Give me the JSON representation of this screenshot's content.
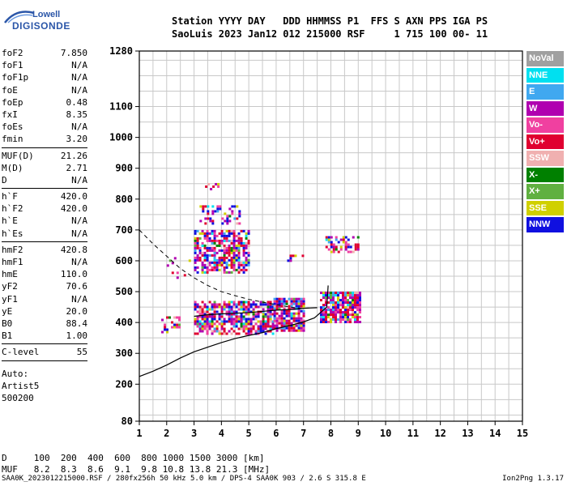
{
  "logo": {
    "line1": "Lowell",
    "line2": "DIGISONDE"
  },
  "header": {
    "row1": "Station YYYY DAY   DDD HHMMSS P1  FFS S AXN PPS IGA PS",
    "row2": "SaoLuis 2023 Jan12 012 215000 RSF     1 715 100 00- 11"
  },
  "params": [
    [
      {
        "name": "foF2",
        "value": "7.850"
      },
      {
        "name": "foF1",
        "value": "N/A"
      },
      {
        "name": "foF1p",
        "value": "N/A"
      },
      {
        "name": "foE",
        "value": "N/A"
      },
      {
        "name": "foEp",
        "value": "0.48"
      },
      {
        "name": "fxI",
        "value": "8.35"
      },
      {
        "name": "foEs",
        "value": "N/A"
      },
      {
        "name": "fmin",
        "value": "3.20"
      }
    ],
    [
      {
        "name": "MUF(D)",
        "value": "21.26"
      },
      {
        "name": "M(D)",
        "value": "2.71"
      },
      {
        "name": "D",
        "value": "N/A"
      }
    ],
    [
      {
        "name": "h`F",
        "value": "420.0"
      },
      {
        "name": "h`F2",
        "value": "420.0"
      },
      {
        "name": "h`E",
        "value": "N/A"
      },
      {
        "name": "h`Es",
        "value": "N/A"
      }
    ],
    [
      {
        "name": "hmF2",
        "value": "420.8"
      },
      {
        "name": "hmF1",
        "value": "N/A"
      },
      {
        "name": "hmE",
        "value": "110.0"
      },
      {
        "name": "yF2",
        "value": "70.6"
      },
      {
        "name": "yF1",
        "value": "N/A"
      },
      {
        "name": "yE",
        "value": "20.0"
      },
      {
        "name": "B0",
        "value": "88.4"
      },
      {
        "name": "B1",
        "value": "1.00"
      }
    ],
    [
      {
        "name": "C-level",
        "value": "55"
      }
    ]
  ],
  "auto": [
    "Auto:",
    "Artist5",
    "500200"
  ],
  "legend": [
    {
      "label": "NoVal",
      "color": "#a0a0a0"
    },
    {
      "label": "NNE",
      "color": "#00e0f0"
    },
    {
      "label": "E",
      "color": "#40a8f0"
    },
    {
      "label": "W",
      "color": "#b000b0"
    },
    {
      "label": "Vo-",
      "color": "#f040a0"
    },
    {
      "label": "Vo+",
      "color": "#e00030"
    },
    {
      "label": "SSW",
      "color": "#f0b0b0"
    },
    {
      "label": "X-",
      "color": "#008000"
    },
    {
      "label": "X+",
      "color": "#60b040"
    },
    {
      "label": "SSE",
      "color": "#d0d000"
    },
    {
      "label": "NNW",
      "color": "#1010e0"
    }
  ],
  "dm_table": {
    "row_d": "D     100  200  400  600  800 1000 1500 3000 [km]",
    "row_muf": "MUF   8.2  8.3  8.6  9.1  9.8 10.8 13.8 21.3 [MHz]"
  },
  "footer": "SAA0K_2023012215000.RSF / 280fx256h 50 kHz 5.0 km / DPS-4 SAA0K 903 / 2.6 S 315.8 E",
  "version": "Ion2Png 1.3.17",
  "chart_data": {
    "type": "scatter",
    "title": "",
    "xlabel": "",
    "ylabel": "",
    "xlim": [
      1,
      15
    ],
    "ylim": [
      80,
      1280
    ],
    "x_ticks": [
      1,
      2,
      3,
      4,
      5,
      6,
      7,
      8,
      9,
      10,
      11,
      12,
      13,
      14,
      15
    ],
    "y_ticks": [
      80,
      200,
      300,
      400,
      500,
      600,
      700,
      800,
      900,
      1000,
      1100,
      1280
    ],
    "echo_clusters": [
      {
        "x": [
          3.0,
          5.9
        ],
        "y": [
          365,
          470
        ],
        "density": 0.7
      },
      {
        "x": [
          5.9,
          7.0
        ],
        "y": [
          370,
          480
        ],
        "density": 0.8
      },
      {
        "x": [
          7.6,
          9.1
        ],
        "y": [
          400,
          500
        ],
        "density": 0.85
      },
      {
        "x": [
          3.0,
          5.0
        ],
        "y": [
          560,
          700
        ],
        "density": 0.65
      },
      {
        "x": [
          3.2,
          4.7
        ],
        "y": [
          720,
          780
        ],
        "density": 0.35
      },
      {
        "x": [
          3.4,
          4.0
        ],
        "y": [
          830,
          860
        ],
        "density": 0.4
      },
      {
        "x": [
          6.4,
          7.0
        ],
        "y": [
          600,
          620
        ],
        "density": 0.4
      },
      {
        "x": [
          7.8,
          9.0
        ],
        "y": [
          630,
          680
        ],
        "density": 0.5
      },
      {
        "x": [
          1.8,
          2.5
        ],
        "y": [
          370,
          420
        ],
        "density": 0.4
      },
      {
        "x": [
          2.0,
          3.0
        ],
        "y": [
          540,
          620
        ],
        "density": 0.1
      }
    ],
    "profile_line": [
      [
        1.0,
        225
      ],
      [
        1.5,
        242
      ],
      [
        2.0,
        262
      ],
      [
        2.5,
        285
      ],
      [
        3.0,
        305
      ],
      [
        3.5,
        320
      ],
      [
        4.0,
        335
      ],
      [
        4.5,
        348
      ],
      [
        5.0,
        358
      ],
      [
        5.5,
        367
      ],
      [
        6.0,
        380
      ],
      [
        6.5,
        390
      ],
      [
        7.0,
        402
      ],
      [
        7.4,
        415
      ],
      [
        7.85,
        450
      ],
      [
        7.9,
        520
      ]
    ],
    "trace_line": [
      [
        3.0,
        420
      ],
      [
        3.5,
        425
      ],
      [
        4.0,
        428
      ],
      [
        4.5,
        430
      ],
      [
        5.0,
        432
      ],
      [
        5.5,
        436
      ],
      [
        6.0,
        440
      ],
      [
        6.5,
        442
      ],
      [
        7.0,
        446
      ],
      [
        7.5,
        448
      ]
    ],
    "dashed_line": [
      [
        1.0,
        700
      ],
      [
        1.5,
        655
      ],
      [
        2.0,
        615
      ],
      [
        2.5,
        575
      ],
      [
        3.0,
        545
      ],
      [
        3.5,
        520
      ],
      [
        4.0,
        500
      ],
      [
        4.5,
        487
      ],
      [
        5.0,
        475
      ],
      [
        5.5,
        466
      ],
      [
        6.0,
        458
      ],
      [
        6.5,
        450
      ],
      [
        7.0,
        445
      ]
    ]
  }
}
